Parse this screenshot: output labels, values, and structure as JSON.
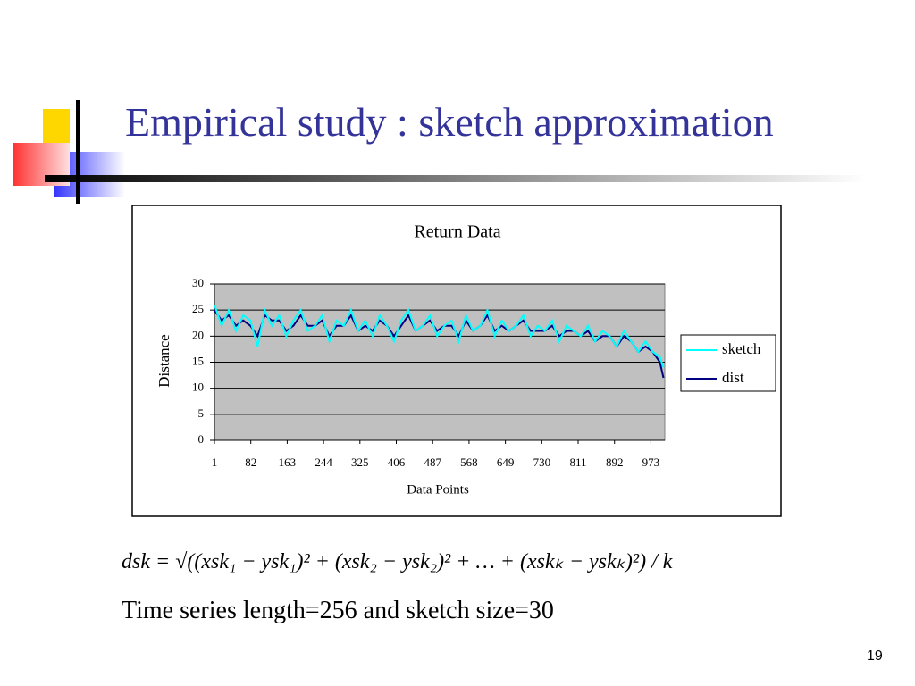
{
  "slide": {
    "title": "Empirical study : sketch approximation",
    "formula": "dsk = √((xsk₁ − ysk₁)² + (xsk₂ − ysk₂)² + … + (xskₖ − yskₖ)²) / k",
    "caption": "Time series length=256 and sketch size=30",
    "page_number": "19"
  },
  "chart_data": {
    "type": "line",
    "title": "Return Data",
    "x_label": "Data Points",
    "y_label": "Distance",
    "x": [
      1,
      17,
      33,
      49,
      65,
      81,
      97,
      113,
      129,
      145,
      161,
      177,
      193,
      209,
      225,
      241,
      257,
      273,
      289,
      305,
      321,
      337,
      353,
      369,
      385,
      401,
      417,
      433,
      449,
      465,
      481,
      497,
      513,
      529,
      545,
      561,
      577,
      593,
      609,
      625,
      641,
      657,
      673,
      689,
      705,
      721,
      737,
      753,
      769,
      785,
      801,
      817,
      833,
      849,
      865,
      881,
      897,
      913,
      929,
      945,
      961,
      977,
      993,
      1001
    ],
    "series": [
      {
        "name": "sketch",
        "color": "#00ffff",
        "values": [
          26,
          22,
          25,
          21,
          24,
          23,
          18,
          25,
          22,
          24,
          20,
          23,
          25,
          21,
          22,
          24,
          19,
          23,
          22,
          25,
          21,
          23,
          20,
          24,
          22,
          19,
          23,
          25,
          21,
          22,
          24,
          20,
          22,
          23,
          19,
          24,
          21,
          22,
          25,
          20,
          23,
          21,
          22,
          24,
          20,
          22,
          21,
          23,
          19,
          22,
          21,
          20,
          22,
          19,
          21,
          20,
          18,
          21,
          19,
          17,
          19,
          17,
          16,
          14
        ]
      },
      {
        "name": "dist",
        "color": "#000080",
        "values": [
          25,
          23,
          24,
          22,
          23,
          22,
          20,
          24,
          23,
          23,
          21,
          22,
          24,
          22,
          22,
          23,
          20,
          22,
          22,
          24,
          21,
          22,
          21,
          23,
          22,
          20,
          22,
          24,
          21,
          22,
          23,
          21,
          22,
          22,
          20,
          23,
          21,
          22,
          24,
          21,
          22,
          21,
          22,
          23,
          21,
          21,
          21,
          22,
          20,
          21,
          21,
          20,
          21,
          19,
          20,
          20,
          18,
          20,
          19,
          17,
          18,
          17,
          15,
          12
        ]
      }
    ],
    "xlim": [
      1,
      1004
    ],
    "xticks": [
      1,
      82,
      163,
      244,
      325,
      406,
      487,
      568,
      649,
      730,
      811,
      892,
      973
    ],
    "ylim": [
      0,
      30
    ],
    "yticks": [
      0,
      5,
      10,
      15,
      20,
      25,
      30
    ],
    "grid": true,
    "plot_background": "#c0c0c0",
    "legend": "right"
  }
}
